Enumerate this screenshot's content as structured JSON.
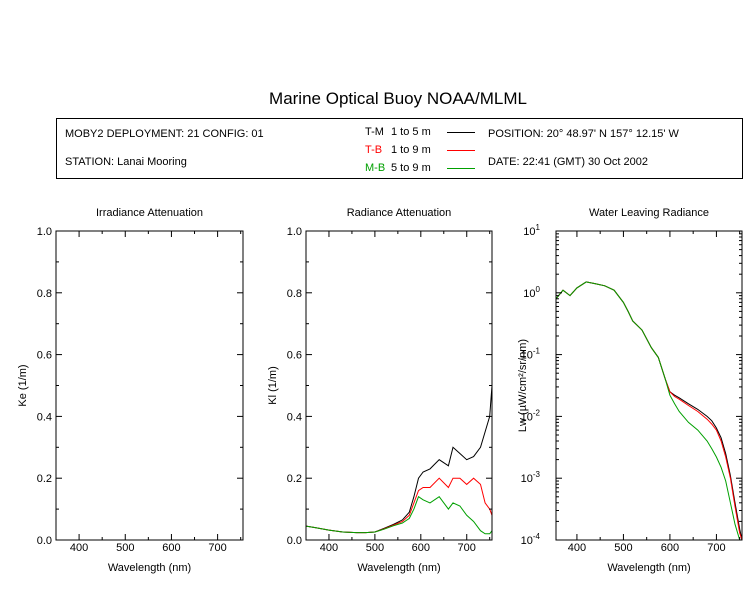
{
  "title": "Marine Optical Buoy NOAA/MLML",
  "header": {
    "deployment": "MOBY2 DEPLOYMENT: 21 CONFIG: 01",
    "station": "STATION: Lanai Mooring",
    "position": "POSITION: 20° 48.97' N   157° 12.15' W",
    "date": "DATE: 22:41 (GMT) 30 Oct 2002",
    "legend": [
      {
        "code": "T-M",
        "range": "1 to 5  m",
        "color": "#000000"
      },
      {
        "code": "T-B",
        "range": "1 to 9  m",
        "color": "#ff0000"
      },
      {
        "code": "M-B",
        "range": "5 to 9  m",
        "color": "#00a000"
      }
    ]
  },
  "chart_data": [
    {
      "type": "line",
      "title": "Irradiance Attenuation",
      "xlabel": "Wavelength (nm)",
      "ylabel": "Ke  (1/m)",
      "xlim": [
        350,
        755
      ],
      "ylim": [
        0,
        1
      ],
      "xticks": [
        "400",
        "500",
        "600",
        "700"
      ],
      "yticks": [
        "0.0",
        "0.2",
        "0.4",
        "0.6",
        "0.8",
        "1.0"
      ],
      "series": []
    },
    {
      "type": "line",
      "title": "Radiance Attenuation",
      "xlabel": "Wavelength (nm)",
      "ylabel": "Kl  (1/m)",
      "xlim": [
        350,
        755
      ],
      "ylim": [
        0,
        1
      ],
      "xticks": [
        "400",
        "500",
        "600",
        "700"
      ],
      "yticks": [
        "0.0",
        "0.2",
        "0.4",
        "0.6",
        "0.8",
        "1.0"
      ],
      "series": [
        {
          "name": "T-M",
          "color": "#000000",
          "x": [
            350,
            370,
            400,
            430,
            460,
            480,
            500,
            520,
            540,
            560,
            575,
            585,
            595,
            605,
            620,
            640,
            660,
            670,
            685,
            700,
            715,
            730,
            740,
            750,
            755
          ],
          "y": [
            0.045,
            0.04,
            0.032,
            0.026,
            0.024,
            0.024,
            0.026,
            0.038,
            0.05,
            0.065,
            0.09,
            0.14,
            0.2,
            0.22,
            0.23,
            0.26,
            0.24,
            0.3,
            0.28,
            0.26,
            0.27,
            0.3,
            0.35,
            0.4,
            0.5
          ]
        },
        {
          "name": "T-B",
          "color": "#ff0000",
          "x": [
            350,
            370,
            400,
            430,
            460,
            480,
            500,
            520,
            540,
            560,
            575,
            585,
            595,
            605,
            620,
            640,
            660,
            670,
            685,
            700,
            715,
            730,
            740,
            750,
            755
          ],
          "y": [
            0.045,
            0.04,
            0.032,
            0.026,
            0.024,
            0.024,
            0.026,
            0.036,
            0.048,
            0.06,
            0.08,
            0.12,
            0.16,
            0.17,
            0.17,
            0.2,
            0.17,
            0.2,
            0.2,
            0.18,
            0.2,
            0.18,
            0.12,
            0.1,
            0.08
          ]
        },
        {
          "name": "M-B",
          "color": "#00a000",
          "x": [
            350,
            370,
            400,
            430,
            460,
            480,
            500,
            520,
            540,
            560,
            575,
            585,
            595,
            605,
            620,
            640,
            660,
            670,
            685,
            700,
            715,
            730,
            740,
            750,
            755
          ],
          "y": [
            0.045,
            0.04,
            0.032,
            0.026,
            0.024,
            0.024,
            0.026,
            0.035,
            0.046,
            0.055,
            0.07,
            0.1,
            0.14,
            0.13,
            0.12,
            0.14,
            0.1,
            0.12,
            0.11,
            0.08,
            0.06,
            0.03,
            0.02,
            0.02,
            0.03
          ]
        }
      ]
    },
    {
      "type": "line",
      "title": "Water Leaving Radiance",
      "xlabel": "Wavelength (nm)",
      "ylabel": "Lw  (µW/cm²/sr/nm)",
      "xlim": [
        355,
        755
      ],
      "ylim": [
        0.0001,
        10
      ],
      "yscale": "log",
      "xticks": [
        "400",
        "500",
        "600",
        "700"
      ],
      "yticks": [
        "10^1",
        "10^0",
        "10^-1",
        "10^-2",
        "10^-3",
        "10^-4"
      ],
      "series": [
        {
          "name": "T-M",
          "color": "#000000",
          "x": [
            355,
            370,
            385,
            400,
            420,
            440,
            460,
            480,
            500,
            510,
            520,
            540,
            560,
            575,
            590,
            600,
            610,
            620,
            640,
            660,
            680,
            690,
            700,
            710,
            720,
            730,
            740,
            750,
            755
          ],
          "y": [
            0.8,
            1.1,
            0.9,
            1.2,
            1.5,
            1.4,
            1.3,
            1.1,
            0.7,
            0.5,
            0.35,
            0.25,
            0.13,
            0.09,
            0.04,
            0.025,
            0.022,
            0.02,
            0.016,
            0.013,
            0.01,
            0.0085,
            0.0065,
            0.0045,
            0.0025,
            0.0011,
            0.0004,
            0.00015,
            0.0001
          ]
        },
        {
          "name": "T-B",
          "color": "#ff0000",
          "x": [
            355,
            370,
            385,
            400,
            420,
            440,
            460,
            480,
            500,
            510,
            520,
            540,
            560,
            575,
            590,
            600,
            610,
            620,
            640,
            660,
            680,
            690,
            700,
            710,
            720,
            730,
            740,
            750,
            755
          ],
          "y": [
            0.8,
            1.1,
            0.9,
            1.2,
            1.5,
            1.4,
            1.3,
            1.1,
            0.7,
            0.5,
            0.35,
            0.25,
            0.13,
            0.09,
            0.04,
            0.025,
            0.021,
            0.019,
            0.015,
            0.012,
            0.009,
            0.0075,
            0.006,
            0.004,
            0.0022,
            0.001,
            0.00035,
            0.00013,
            0.0001
          ]
        },
        {
          "name": "M-B",
          "color": "#00a000",
          "x": [
            355,
            370,
            385,
            400,
            420,
            440,
            460,
            480,
            500,
            510,
            520,
            540,
            560,
            575,
            590,
            600,
            610,
            620,
            640,
            660,
            680,
            690,
            700,
            710,
            720,
            730,
            740,
            750,
            755
          ],
          "y": [
            0.8,
            1.1,
            0.9,
            1.2,
            1.5,
            1.4,
            1.3,
            1.1,
            0.7,
            0.5,
            0.35,
            0.25,
            0.13,
            0.09,
            0.04,
            0.022,
            0.016,
            0.012,
            0.008,
            0.006,
            0.004,
            0.003,
            0.0022,
            0.0015,
            0.0009,
            0.0004,
            0.00018,
            0.0001,
            0.0001
          ]
        }
      ]
    }
  ]
}
